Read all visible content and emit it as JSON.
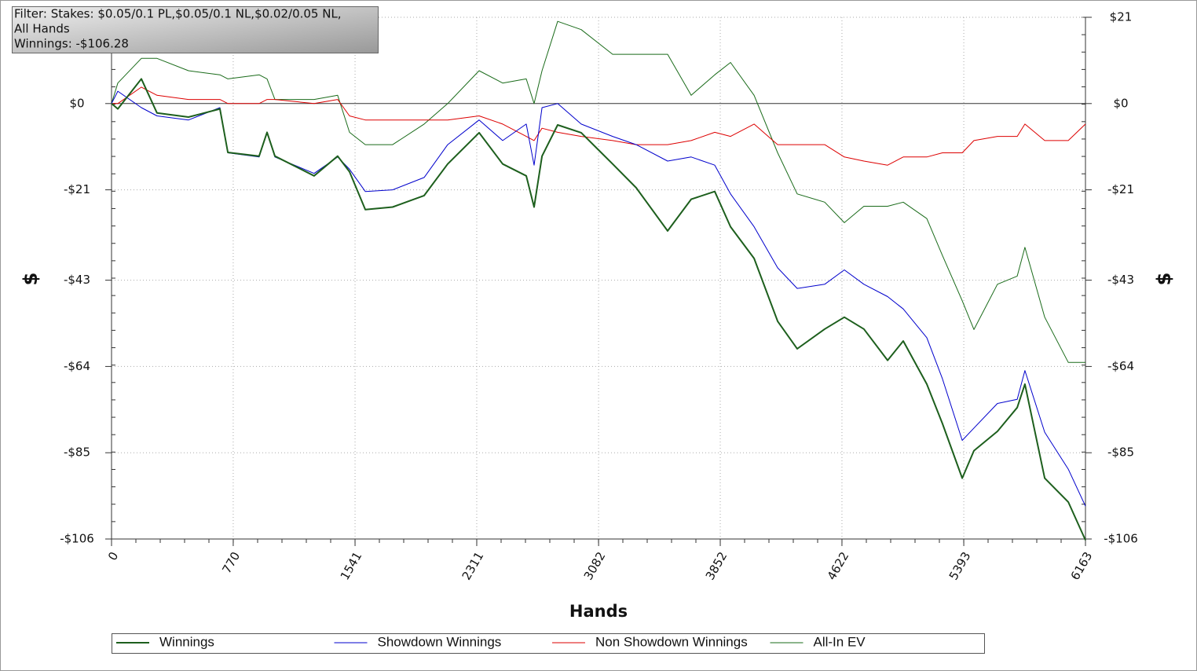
{
  "chart_data": {
    "type": "line",
    "annotations": [
      "Filter: Stakes: $0.05/0.1 PL,$0.05/0.1 NL,$0.02/0.05 NL,",
      "All Hands",
      "Winnings: -$106.28"
    ],
    "x_label": "Hands",
    "y_label": "$",
    "x": [
      0,
      40,
      189,
      288,
      487,
      686,
      736,
      934,
      984,
      1034,
      1282,
      1431,
      1506,
      1606,
      1779,
      1978,
      2127,
      2326,
      2475,
      2624,
      2674,
      2724,
      2823,
      2972,
      3171,
      3320,
      3519,
      3668,
      3817,
      3917,
      4066,
      4215,
      4339,
      4513,
      4637,
      4761,
      4911,
      5010,
      5159,
      5258,
      5383,
      5457,
      5606,
      5731,
      5780,
      5905,
      6054,
      6163
    ],
    "series": [
      {
        "name": "Winnings",
        "color": "#1d5f1d",
        "width": 2,
        "values": [
          0,
          -1.3,
          6,
          -2.3,
          -3.3,
          -1.3,
          -11.9,
          -12.8,
          -7,
          -12.8,
          -17.6,
          -12.8,
          -16.6,
          -25.8,
          -25.2,
          -22.4,
          -14.7,
          -7.1,
          -14.7,
          -17.6,
          -25.2,
          -12.8,
          -5.2,
          -7.1,
          -14.7,
          -20.5,
          -31,
          -23.3,
          -21.4,
          -30,
          -37.7,
          -53,
          -59.7,
          -54.9,
          -52,
          -54.9,
          -62.5,
          -57.8,
          -68.3,
          -77.9,
          -91.2,
          -84.5,
          -79.8,
          -74,
          -68.3,
          -91.2,
          -97,
          -106.28
        ]
      },
      {
        "name": "Showdown Winnings",
        "color": "#0000cc",
        "width": 1,
        "values": [
          0,
          3,
          -1,
          -3,
          -4,
          -1,
          -12,
          -13,
          -7,
          -13,
          -17,
          -13,
          -16,
          -21.4,
          -21,
          -18,
          -10,
          -4,
          -9,
          -5,
          -15,
          -1,
          0,
          -5,
          -8,
          -10,
          -14,
          -13,
          -15,
          -22,
          -30,
          -40,
          -45,
          -44,
          -40.5,
          -44,
          -47,
          -50,
          -57,
          -67,
          -82,
          -79,
          -73,
          -72,
          -65,
          -80,
          -89,
          -98
        ]
      },
      {
        "name": "Non Showdown Winnings",
        "color": "#dd0000",
        "width": 1,
        "values": [
          0,
          0,
          4,
          2,
          1,
          1,
          0,
          0,
          1,
          1,
          0,
          1,
          -3,
          -4,
          -4,
          -4,
          -4,
          -3,
          -5,
          -8,
          -9,
          -6,
          -7,
          -8,
          -9,
          -10,
          -10,
          -9,
          -7,
          -8,
          -5,
          -10,
          -10,
          -10,
          -13,
          -14,
          -15,
          -13,
          -13,
          -12,
          -12,
          -9,
          -8,
          -8,
          -5,
          -9,
          -9,
          -5
        ]
      },
      {
        "name": "All-In EV",
        "color": "#1a6b1a",
        "width": 1,
        "values": [
          0,
          5,
          11,
          11,
          8,
          7,
          6,
          7,
          6,
          1,
          1,
          2,
          -7,
          -10,
          -10,
          -5,
          0,
          8,
          5,
          6,
          0,
          8,
          20,
          18,
          12,
          12,
          12,
          2,
          7,
          10,
          2,
          -12,
          -22,
          -24,
          -29,
          -25,
          -25,
          -24,
          -28,
          -37,
          -48,
          -55,
          -44,
          -42,
          -35,
          -52,
          -63,
          -63
        ]
      }
    ],
    "xlim": [
      0,
      6163
    ],
    "xticks": [
      0,
      770,
      1541,
      2311,
      3082,
      3852,
      4622,
      5393,
      6163
    ],
    "ylim": [
      -106,
      21
    ],
    "yticks": [
      {
        "value": -106,
        "label": "-$106"
      },
      {
        "value": -85,
        "label": "-$85"
      },
      {
        "value": -64,
        "label": "-$64"
      },
      {
        "value": -43,
        "label": "-$43"
      },
      {
        "value": -21,
        "label": "-$21"
      },
      {
        "value": 0,
        "label": "$0"
      },
      {
        "value": 21,
        "label": "$21"
      }
    ],
    "grid": true
  }
}
